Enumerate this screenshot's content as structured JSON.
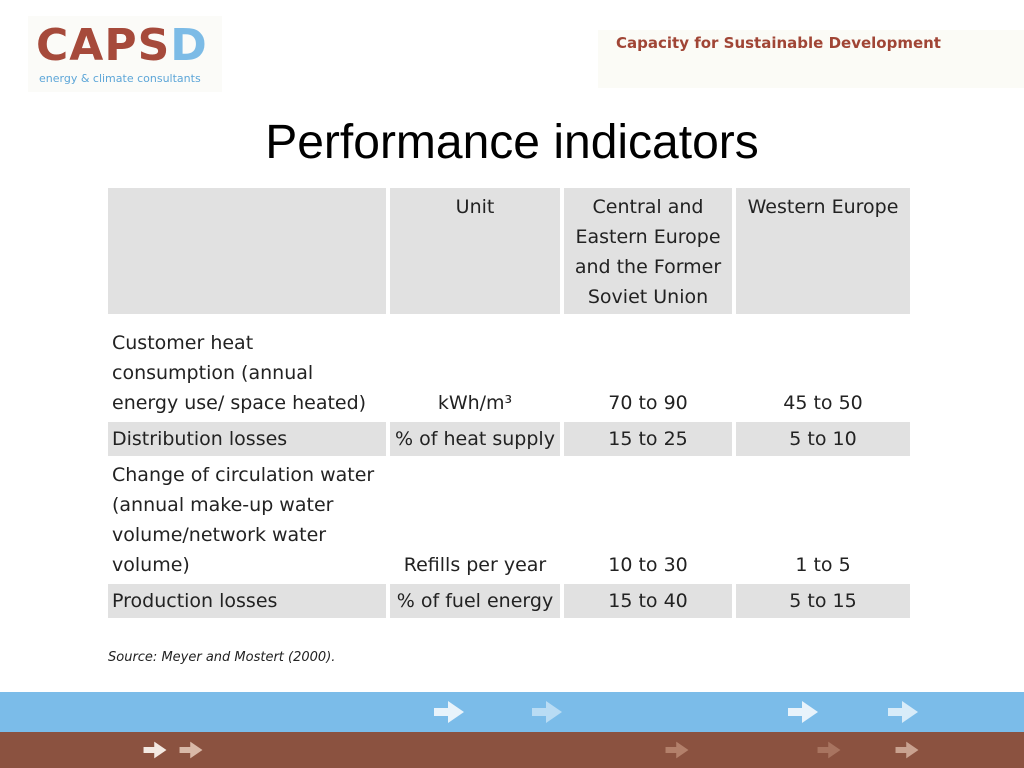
{
  "logo": {
    "word_main": "CAPS",
    "word_accent": "D",
    "tagline": "energy & climate consultants"
  },
  "header": {
    "tagline": "Capacity for Sustainable Development"
  },
  "title": "Performance indicators",
  "table": {
    "headers": [
      "",
      "Unit",
      "Central and Eastern Europe and the Former Soviet Union",
      "Western Europe"
    ],
    "rows": [
      {
        "indicator": "Customer heat consumption (annual energy use/ space heated)",
        "unit": "kWh/m³",
        "cee": "70 to 90",
        "we": "45 to 50"
      },
      {
        "indicator": "Distribution losses",
        "unit": "% of heat supply",
        "cee": "15 to 25",
        "we": "5 to 10"
      },
      {
        "indicator": "Change of circulation water (annual make-up water volume/network water volume)",
        "unit": "Refills per year",
        "cee": "10 to 30",
        "we": "1 to 5"
      },
      {
        "indicator": "Production losses",
        "unit": "% of fuel energy",
        "cee": "15 to 40",
        "we": "5 to 15"
      }
    ]
  },
  "source": "Source: Meyer and Mostert (2000).",
  "footer": {
    "top_color": "#7bbce9",
    "bottom_color": "#8b5240",
    "arrow_icon": "right-arrow-icon"
  }
}
